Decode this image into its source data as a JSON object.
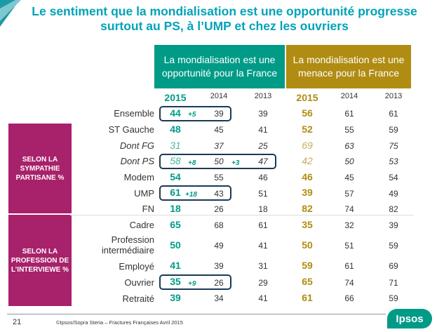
{
  "title": "Le sentiment que la mondialisation est une opportunité progresse surtout au PS, à l’UMP et chez les ouvriers",
  "headers": {
    "opportunity": "La mondialisation est une opportunité pour la France",
    "threat": "La mondialisation est une menace pour la France"
  },
  "years": [
    "2015",
    "2014",
    "2013"
  ],
  "groups": {
    "sympathie": "SELON LA SYMPATHIE PARTISANE %",
    "profession": "SELON LA PROFESSION DE L’INTERVIEWE %"
  },
  "rows": [
    {
      "label": "Ensemble",
      "opp": [
        "44",
        "39",
        "39"
      ],
      "delta": "+5",
      "men": [
        "56",
        "61",
        "61"
      ]
    },
    {
      "label": "ST Gauche",
      "opp": [
        "48",
        "45",
        "41"
      ],
      "delta": "",
      "men": [
        "52",
        "55",
        "59"
      ]
    },
    {
      "label": "Dont FG",
      "opp": [
        "31",
        "37",
        "25"
      ],
      "delta": "",
      "men": [
        "69",
        "63",
        "75"
      ]
    },
    {
      "label": "Dont PS",
      "opp": [
        "58",
        "50",
        "47"
      ],
      "delta": "+8",
      "delta2": "+3",
      "men": [
        "42",
        "50",
        "53"
      ]
    },
    {
      "label": "Modem",
      "opp": [
        "54",
        "55",
        "46"
      ],
      "delta": "",
      "men": [
        "46",
        "45",
        "54"
      ]
    },
    {
      "label": "UMP",
      "opp": [
        "61",
        "43",
        "51"
      ],
      "delta": "+18",
      "men": [
        "39",
        "57",
        "49"
      ]
    },
    {
      "label": "FN",
      "opp": [
        "18",
        "26",
        "18"
      ],
      "delta": "",
      "men": [
        "82",
        "74",
        "82"
      ]
    },
    {
      "label": "Cadre",
      "opp": [
        "65",
        "68",
        "61"
      ],
      "delta": "",
      "men": [
        "35",
        "32",
        "39"
      ]
    },
    {
      "label": "Profession intermédiaire",
      "opp": [
        "50",
        "49",
        "41"
      ],
      "delta": "",
      "men": [
        "50",
        "51",
        "59"
      ]
    },
    {
      "label": "Employé",
      "opp": [
        "41",
        "39",
        "31"
      ],
      "delta": "",
      "men": [
        "59",
        "61",
        "69"
      ]
    },
    {
      "label": "Ouvrier",
      "opp": [
        "35",
        "26",
        "29"
      ],
      "delta": "+9",
      "men": [
        "65",
        "74",
        "71"
      ]
    },
    {
      "label": "Retraité",
      "opp": [
        "39",
        "34",
        "41"
      ],
      "delta": "",
      "men": [
        "61",
        "66",
        "59"
      ]
    }
  ],
  "footer": {
    "page": "21",
    "copyright": "©Ipsos/Sopra Steria –  Fractures Françaises  Avril 2015",
    "logo": "Ipsos"
  }
}
